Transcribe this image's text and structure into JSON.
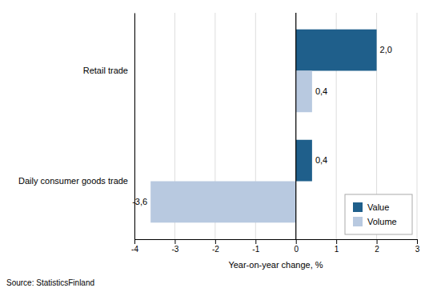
{
  "chart_data": {
    "type": "bar",
    "orientation": "horizontal",
    "categories": [
      "Daily consumer goods trade",
      "Retail trade"
    ],
    "series": [
      {
        "name": "Value",
        "color": "#1f5f8b",
        "values": [
          0.4,
          2.0
        ],
        "value_labels": [
          "0,4",
          "2,0"
        ]
      },
      {
        "name": "Volume",
        "color": "#b8c9e0",
        "values": [
          -3.6,
          0.4
        ],
        "value_labels": [
          "-3,6",
          "0,4"
        ]
      }
    ],
    "xlabel": "Year-on-year change, %",
    "xlim": [
      -4,
      3
    ],
    "xticks": [
      -4,
      -3,
      -2,
      -1,
      0,
      1,
      2,
      3
    ],
    "grid": true,
    "legend": "lower right",
    "data_labels": true,
    "annotations": [
      "Source: StatisticsFinland"
    ]
  }
}
